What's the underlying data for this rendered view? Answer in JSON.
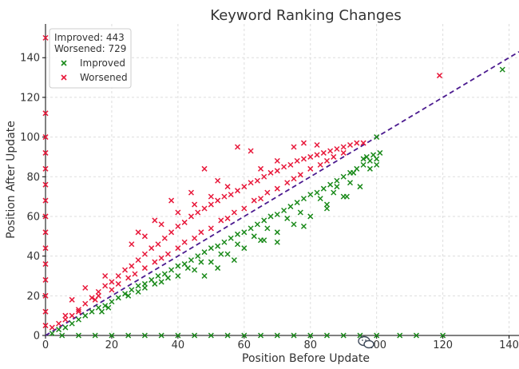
{
  "chart_data": {
    "type": "scatter",
    "title": "Keyword Ranking Changes",
    "xlabel": "Position Before Update",
    "ylabel": "Position After Update",
    "xlim": [
      0,
      143
    ],
    "ylim": [
      0,
      157
    ],
    "x_ticks": [
      0,
      20,
      40,
      60,
      80,
      100,
      120,
      140
    ],
    "y_ticks": [
      0,
      20,
      40,
      60,
      80,
      100,
      120,
      140
    ],
    "grid": true,
    "legend_position": "top-left",
    "stats": [
      "Improved: 443",
      "Worsened: 729"
    ],
    "reference_line": {
      "from": [
        0,
        0
      ],
      "to": [
        143,
        143
      ],
      "style": "dashed",
      "color": "#4b1a8f"
    },
    "series": [
      {
        "name": "Improved",
        "color": "#1a8a1a",
        "points": [
          [
            2,
            1
          ],
          [
            4,
            3
          ],
          [
            6,
            4
          ],
          [
            8,
            6
          ],
          [
            10,
            8
          ],
          [
            12,
            10
          ],
          [
            14,
            12
          ],
          [
            16,
            14
          ],
          [
            18,
            15
          ],
          [
            20,
            17
          ],
          [
            22,
            19
          ],
          [
            24,
            21
          ],
          [
            26,
            23
          ],
          [
            28,
            25
          ],
          [
            30,
            26
          ],
          [
            32,
            28
          ],
          [
            34,
            30
          ],
          [
            36,
            31
          ],
          [
            38,
            33
          ],
          [
            40,
            35
          ],
          [
            42,
            36
          ],
          [
            44,
            38
          ],
          [
            46,
            40
          ],
          [
            48,
            42
          ],
          [
            50,
            44
          ],
          [
            52,
            45
          ],
          [
            54,
            47
          ],
          [
            56,
            49
          ],
          [
            58,
            51
          ],
          [
            60,
            52
          ],
          [
            62,
            54
          ],
          [
            64,
            56
          ],
          [
            66,
            58
          ],
          [
            68,
            60
          ],
          [
            70,
            61
          ],
          [
            72,
            63
          ],
          [
            74,
            65
          ],
          [
            76,
            67
          ],
          [
            78,
            69
          ],
          [
            80,
            71
          ],
          [
            82,
            72
          ],
          [
            84,
            74
          ],
          [
            86,
            76
          ],
          [
            88,
            78
          ],
          [
            90,
            80
          ],
          [
            92,
            82
          ],
          [
            94,
            84
          ],
          [
            96,
            86
          ],
          [
            98,
            88
          ],
          [
            100,
            89
          ],
          [
            25,
            20
          ],
          [
            30,
            24
          ],
          [
            35,
            27
          ],
          [
            40,
            30
          ],
          [
            45,
            33
          ],
          [
            50,
            37
          ],
          [
            55,
            41
          ],
          [
            60,
            44
          ],
          [
            65,
            48
          ],
          [
            70,
            52
          ],
          [
            75,
            56
          ],
          [
            80,
            60
          ],
          [
            85,
            66
          ],
          [
            90,
            70
          ],
          [
            95,
            75
          ],
          [
            98,
            84
          ],
          [
            100,
            86
          ],
          [
            97,
            90
          ],
          [
            70,
            47
          ],
          [
            88,
            75
          ],
          [
            91,
            70
          ],
          [
            85,
            64
          ],
          [
            92,
            77
          ],
          [
            78,
            55
          ],
          [
            66,
            48
          ],
          [
            57,
            38
          ],
          [
            52,
            34
          ],
          [
            48,
            30
          ],
          [
            17,
            12
          ],
          [
            19,
            14
          ],
          [
            28,
            22
          ],
          [
            33,
            26
          ],
          [
            37,
            29
          ],
          [
            43,
            34
          ],
          [
            47,
            37
          ],
          [
            53,
            41
          ],
          [
            58,
            46
          ],
          [
            63,
            50
          ],
          [
            67,
            54
          ],
          [
            73,
            59
          ],
          [
            77,
            62
          ],
          [
            83,
            69
          ],
          [
            87,
            72
          ],
          [
            93,
            82
          ],
          [
            96,
            89
          ],
          [
            99,
            91
          ],
          [
            101,
            92
          ],
          [
            100,
            100
          ],
          [
            5,
            0
          ],
          [
            10,
            0
          ],
          [
            15,
            0
          ],
          [
            20,
            0
          ],
          [
            25,
            0
          ],
          [
            30,
            0
          ],
          [
            35,
            0
          ],
          [
            40,
            0
          ],
          [
            45,
            0
          ],
          [
            50,
            0
          ],
          [
            55,
            0
          ],
          [
            60,
            0
          ],
          [
            65,
            0
          ],
          [
            70,
            0
          ],
          [
            75,
            0
          ],
          [
            80,
            0
          ],
          [
            85,
            0
          ],
          [
            90,
            0
          ],
          [
            95,
            0
          ],
          [
            100,
            0
          ],
          [
            107,
            0
          ],
          [
            112,
            0
          ],
          [
            120,
            0
          ],
          [
            138,
            134
          ]
        ]
      },
      {
        "name": "Worsened",
        "color": "#e8183a",
        "points": [
          [
            2,
            4
          ],
          [
            4,
            6
          ],
          [
            6,
            8
          ],
          [
            8,
            10
          ],
          [
            10,
            13
          ],
          [
            12,
            16
          ],
          [
            14,
            19
          ],
          [
            16,
            22
          ],
          [
            18,
            25
          ],
          [
            20,
            27
          ],
          [
            22,
            30
          ],
          [
            24,
            33
          ],
          [
            26,
            35
          ],
          [
            28,
            38
          ],
          [
            30,
            41
          ],
          [
            32,
            44
          ],
          [
            34,
            46
          ],
          [
            36,
            49
          ],
          [
            38,
            52
          ],
          [
            40,
            55
          ],
          [
            42,
            57
          ],
          [
            44,
            60
          ],
          [
            46,
            62
          ],
          [
            48,
            64
          ],
          [
            50,
            66
          ],
          [
            52,
            68
          ],
          [
            54,
            70
          ],
          [
            56,
            71
          ],
          [
            58,
            73
          ],
          [
            60,
            75
          ],
          [
            62,
            77
          ],
          [
            64,
            78
          ],
          [
            66,
            80
          ],
          [
            68,
            82
          ],
          [
            70,
            83
          ],
          [
            72,
            85
          ],
          [
            74,
            86
          ],
          [
            76,
            88
          ],
          [
            78,
            89
          ],
          [
            80,
            90
          ],
          [
            82,
            91
          ],
          [
            84,
            92
          ],
          [
            86,
            93
          ],
          [
            88,
            94
          ],
          [
            90,
            95
          ],
          [
            92,
            96
          ],
          [
            94,
            97
          ],
          [
            96,
            97
          ],
          [
            15,
            18
          ],
          [
            20,
            23
          ],
          [
            25,
            29
          ],
          [
            30,
            34
          ],
          [
            35,
            39
          ],
          [
            40,
            44
          ],
          [
            45,
            49
          ],
          [
            50,
            54
          ],
          [
            55,
            59
          ],
          [
            60,
            64
          ],
          [
            65,
            69
          ],
          [
            70,
            74
          ],
          [
            75,
            79
          ],
          [
            80,
            84
          ],
          [
            85,
            88
          ],
          [
            90,
            92
          ],
          [
            30,
            50
          ],
          [
            35,
            56
          ],
          [
            40,
            62
          ],
          [
            45,
            66
          ],
          [
            50,
            70
          ],
          [
            55,
            75
          ],
          [
            58,
            95
          ],
          [
            62,
            93
          ],
          [
            65,
            84
          ],
          [
            70,
            88
          ],
          [
            75,
            95
          ],
          [
            78,
            97
          ],
          [
            82,
            96
          ],
          [
            48,
            84
          ],
          [
            52,
            78
          ],
          [
            44,
            72
          ],
          [
            38,
            68
          ],
          [
            33,
            58
          ],
          [
            28,
            52
          ],
          [
            26,
            46
          ],
          [
            18,
            30
          ],
          [
            12,
            24
          ],
          [
            8,
            18
          ],
          [
            10,
            12
          ],
          [
            6,
            10
          ],
          [
            16,
            20
          ],
          [
            22,
            26
          ],
          [
            27,
            31
          ],
          [
            33,
            37
          ],
          [
            37,
            41
          ],
          [
            42,
            47
          ],
          [
            47,
            52
          ],
          [
            53,
            58
          ],
          [
            57,
            62
          ],
          [
            63,
            68
          ],
          [
            67,
            72
          ],
          [
            73,
            77
          ],
          [
            77,
            81
          ],
          [
            83,
            86
          ],
          [
            87,
            90
          ],
          [
            0,
            5
          ],
          [
            0,
            12
          ],
          [
            0,
            20
          ],
          [
            0,
            28
          ],
          [
            0,
            36
          ],
          [
            0,
            44
          ],
          [
            0,
            52
          ],
          [
            0,
            60
          ],
          [
            0,
            68
          ],
          [
            0,
            76
          ],
          [
            0,
            84
          ],
          [
            0,
            92
          ],
          [
            0,
            100
          ],
          [
            0,
            112
          ],
          [
            0,
            150
          ],
          [
            119,
            131
          ]
        ]
      }
    ]
  }
}
